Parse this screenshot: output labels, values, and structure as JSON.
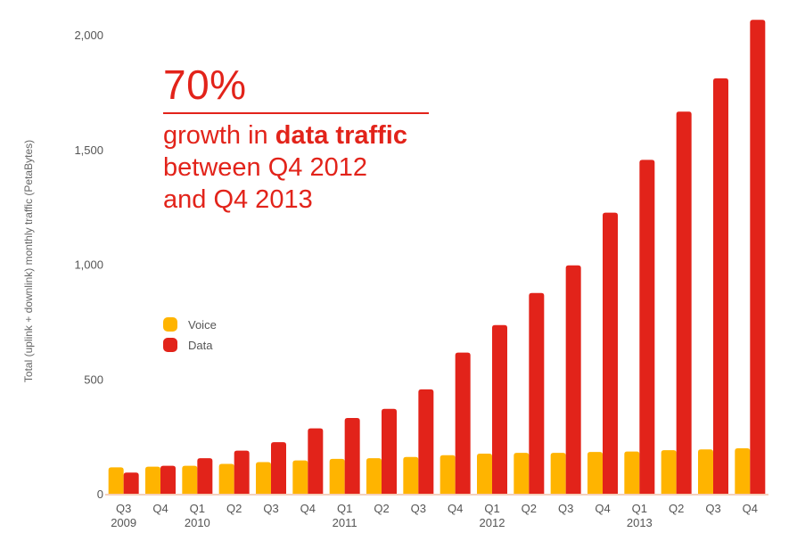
{
  "chart_data": {
    "type": "bar",
    "ylabel": "Total (uplink + downlink) monthly traffic (PetaBytes)",
    "ylim": [
      0,
      2000
    ],
    "yticks": [
      0,
      500,
      1000,
      1500,
      2000
    ],
    "ytick_labels": [
      "0",
      "500",
      "1,000",
      "1,500",
      "2,000"
    ],
    "legend_position": "center-left",
    "grid": false,
    "categories": [
      "Q3",
      "Q4",
      "Q1",
      "Q2",
      "Q3",
      "Q4",
      "Q1",
      "Q2",
      "Q3",
      "Q4",
      "Q1",
      "Q2",
      "Q3",
      "Q4",
      "Q1",
      "Q2",
      "Q3",
      "Q4"
    ],
    "year_labels": [
      {
        "index": 0,
        "label": "2009"
      },
      {
        "index": 2,
        "label": "2010"
      },
      {
        "index": 6,
        "label": "2011"
      },
      {
        "index": 10,
        "label": "2012"
      },
      {
        "index": 14,
        "label": "2013"
      }
    ],
    "series": [
      {
        "name": "Voice",
        "color": "#ffb400",
        "values": [
          115,
          118,
          122,
          130,
          138,
          145,
          152,
          155,
          160,
          168,
          175,
          178,
          178,
          182,
          184,
          190,
          193,
          198
        ]
      },
      {
        "name": "Data",
        "color": "#e2231a",
        "values": [
          92,
          122,
          155,
          188,
          225,
          285,
          330,
          370,
          455,
          615,
          735,
          875,
          995,
          1225,
          1455,
          1665,
          1810,
          2065
        ]
      }
    ]
  },
  "callout": {
    "number": "70%",
    "line1_prefix": "growth in ",
    "line1_bold": "data traffic",
    "line2": "between Q4 2012",
    "line3": "and Q4 2013"
  }
}
